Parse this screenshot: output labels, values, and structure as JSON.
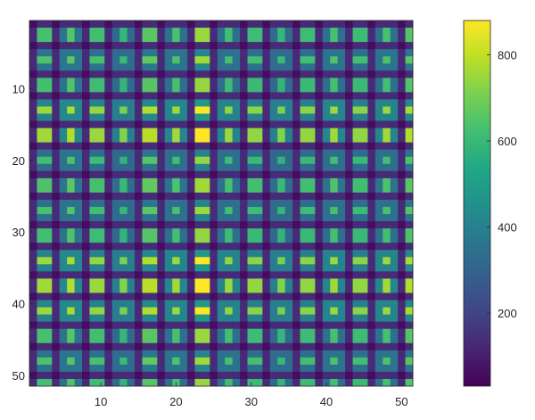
{
  "chart_data": {
    "type": "heatmap",
    "title": "",
    "rows": 51,
    "cols": 51,
    "xlabel": "",
    "ylabel": "",
    "x_ticks": [
      10,
      20,
      30,
      40,
      50
    ],
    "y_ticks": [
      10,
      20,
      30,
      40,
      50
    ],
    "x_tick_labels": [
      "10",
      "20",
      "30",
      "40",
      "50"
    ],
    "y_tick_labels": [
      "10",
      "20",
      "30",
      "40",
      "50"
    ],
    "x_range": [
      1,
      51
    ],
    "y_range": [
      1,
      51
    ],
    "y_direction": "reversed",
    "colormap": "viridis",
    "clim": [
      30,
      880
    ],
    "colorbar": {
      "placement": "right",
      "ticks": [
        200,
        400,
        600,
        800
      ],
      "tick_labels": [
        "200",
        "400",
        "600",
        "800"
      ]
    },
    "pattern": {
      "period": 3.5,
      "base_value": 60,
      "peak_value": 880,
      "block_centers_description": "repeating grid of bright blocks roughly every 3.5 cells in both directions",
      "row_peak_values": [
        620,
        640,
        610,
        860,
        880,
        600,
        640,
        620,
        600,
        860,
        880,
        860
      ],
      "col_peak_values": [
        640,
        680,
        620,
        560,
        700,
        640,
        880,
        620,
        600,
        560,
        600,
        640,
        600
      ]
    },
    "grid": false
  }
}
